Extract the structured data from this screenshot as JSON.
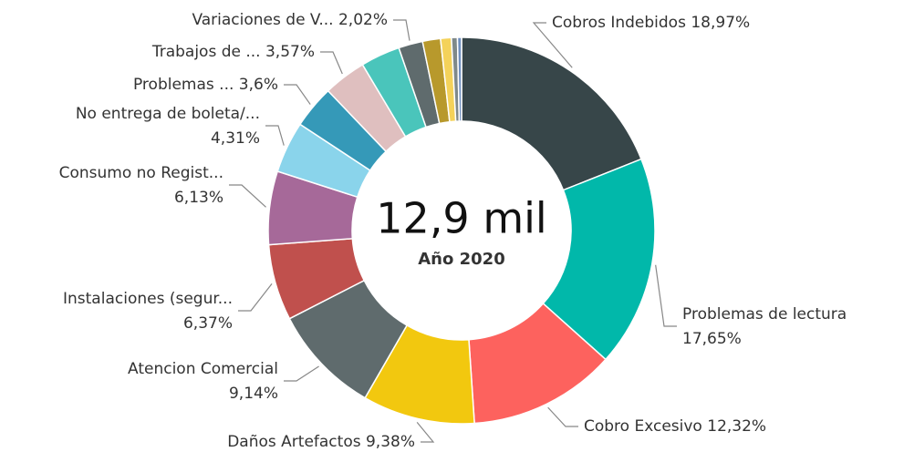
{
  "chart_data": {
    "type": "donut",
    "center_value": "12,9 mil",
    "center_label": "Año 2020",
    "categories": [
      "Cobros Indebidos",
      "Problemas de lectura",
      "Cobro Excesivo",
      "Daños Artefactos",
      "Atencion Comercial",
      "Instalaciones (segur...",
      "Consumo no Regist...",
      "No entrega de boleta/...",
      "Problemas ...",
      "Trabajos de ...",
      null,
      "Variaciones de V...",
      null,
      null,
      null,
      null
    ],
    "values": [
      18.97,
      17.65,
      12.32,
      9.38,
      9.14,
      6.37,
      6.13,
      4.31,
      3.6,
      3.57,
      3.3,
      2.02,
      1.5,
      0.9,
      0.5,
      0.34
    ],
    "value_labels": [
      "18,97%",
      "17,65%",
      "12,32%",
      "9,38%",
      "9,14%",
      "6,37%",
      "6,13%",
      "4,31%",
      "3,6%",
      "3,57%",
      null,
      "2,02%",
      null,
      null,
      null,
      null
    ],
    "colors": [
      "#374649",
      "#01B8AA",
      "#FD625E",
      "#F2C80F",
      "#5F6B6D",
      "#C0504D",
      "#A66999",
      "#8AD4EB",
      "#3599B8",
      "#DFBFBF",
      "#4AC5BB",
      "#5F6B6D",
      "#B8992C",
      "#F4D25A",
      "#7F898A",
      "#6F8FBF"
    ]
  }
}
